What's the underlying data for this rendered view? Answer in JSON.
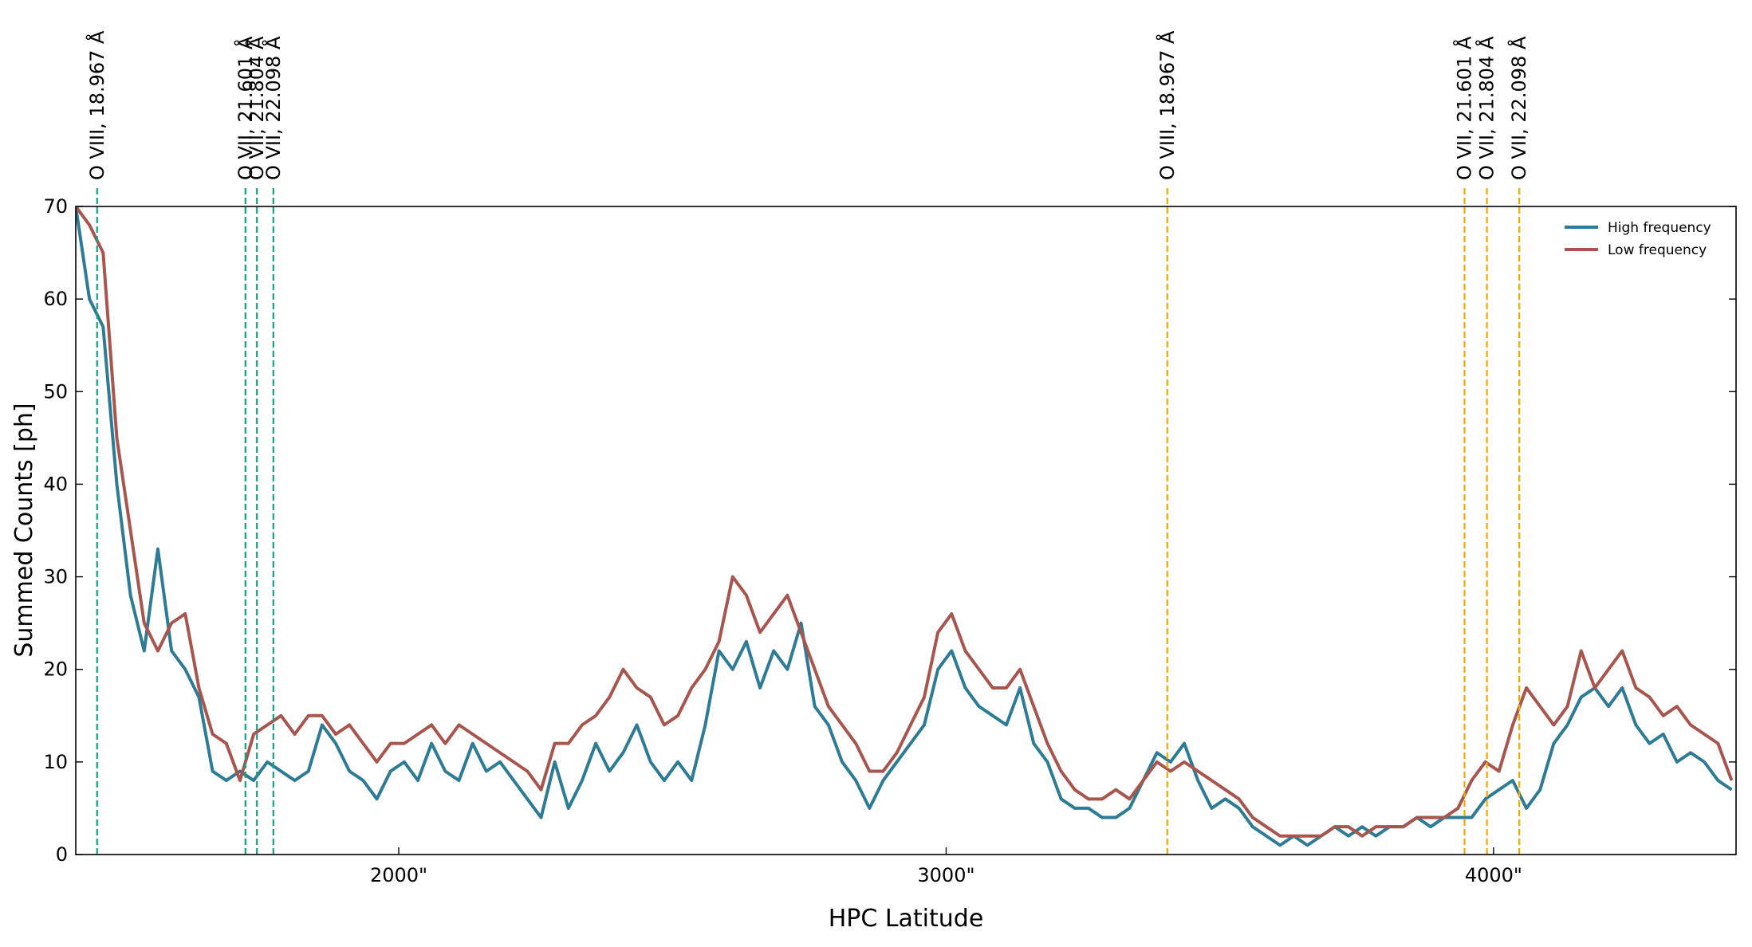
{
  "chart_data": {
    "type": "line",
    "xlabel": "HPC Latitude",
    "ylabel": "Summed Counts [ph]",
    "x": [
      1410,
      1435,
      1460,
      1485,
      1510,
      1535,
      1560,
      1585,
      1610,
      1635,
      1660,
      1685,
      1710,
      1735,
      1760,
      1785,
      1810,
      1835,
      1860,
      1885,
      1910,
      1935,
      1960,
      1985,
      2010,
      2035,
      2060,
      2085,
      2110,
      2135,
      2160,
      2185,
      2210,
      2235,
      2260,
      2285,
      2310,
      2335,
      2360,
      2385,
      2410,
      2435,
      2460,
      2485,
      2510,
      2535,
      2560,
      2585,
      2610,
      2635,
      2660,
      2685,
      2710,
      2735,
      2760,
      2785,
      2810,
      2835,
      2860,
      2885,
      2910,
      2935,
      2960,
      2985,
      3010,
      3035,
      3060,
      3085,
      3110,
      3135,
      3160,
      3185,
      3210,
      3235,
      3260,
      3285,
      3310,
      3335,
      3360,
      3385,
      3410,
      3435,
      3460,
      3485,
      3510,
      3535,
      3560,
      3585,
      3610,
      3635,
      3660,
      3685,
      3710,
      3735,
      3760,
      3785,
      3810,
      3835,
      3860,
      3885,
      3910,
      3935,
      3960,
      3985,
      4010,
      4035,
      4060,
      4085,
      4110,
      4135,
      4160,
      4185,
      4210,
      4235,
      4260,
      4285,
      4310,
      4335,
      4360,
      4385,
      4410,
      4435
    ],
    "series": [
      {
        "name": "High frequency",
        "color": "#2e7b96",
        "values": [
          70,
          60,
          57,
          40,
          28,
          22,
          33,
          22,
          20,
          17,
          9,
          8,
          9,
          8,
          10,
          9,
          8,
          9,
          14,
          12,
          9,
          8,
          6,
          9,
          10,
          8,
          12,
          9,
          8,
          12,
          9,
          10,
          8,
          6,
          4,
          10,
          5,
          8,
          12,
          9,
          11,
          14,
          10,
          8,
          10,
          8,
          14,
          22,
          20,
          23,
          18,
          22,
          20,
          25,
          16,
          14,
          10,
          8,
          5,
          8,
          10,
          12,
          14,
          20,
          22,
          18,
          16,
          15,
          14,
          18,
          12,
          10,
          6,
          5,
          5,
          4,
          4,
          5,
          8,
          11,
          10,
          12,
          8,
          5,
          6,
          5,
          3,
          2,
          1,
          2,
          1,
          2,
          3,
          2,
          3,
          2,
          3,
          3,
          4,
          3,
          4,
          4,
          4,
          6,
          7,
          8,
          5,
          7,
          12,
          14,
          17,
          18,
          16,
          18,
          14,
          12,
          13,
          10,
          11,
          10,
          8,
          7
        ]
      },
      {
        "name": "Low frequency",
        "color": "#a8554e",
        "values": [
          70,
          68,
          65,
          45,
          35,
          25,
          22,
          25,
          26,
          18,
          13,
          12,
          8,
          13,
          14,
          15,
          13,
          15,
          15,
          13,
          14,
          12,
          10,
          12,
          12,
          13,
          14,
          12,
          14,
          13,
          12,
          11,
          10,
          9,
          7,
          12,
          12,
          14,
          15,
          17,
          20,
          18,
          17,
          14,
          15,
          18,
          20,
          23,
          30,
          28,
          24,
          26,
          28,
          24,
          20,
          16,
          14,
          12,
          9,
          9,
          11,
          14,
          17,
          24,
          26,
          22,
          20,
          18,
          18,
          20,
          16,
          12,
          9,
          7,
          6,
          6,
          7,
          6,
          8,
          10,
          9,
          10,
          9,
          8,
          7,
          6,
          4,
          3,
          2,
          2,
          2,
          2,
          3,
          3,
          2,
          3,
          3,
          3,
          4,
          4,
          4,
          5,
          8,
          10,
          9,
          14,
          18,
          16,
          14,
          16,
          22,
          18,
          20,
          22,
          18,
          17,
          15,
          16,
          14,
          13,
          12,
          8
        ]
      }
    ],
    "annotations": [
      {
        "x": 1449,
        "label": "O VIII, 18.967 Å",
        "color": "#0fa383"
      },
      {
        "x": 1720,
        "label": "O VII, 21.601 Å",
        "color": "#0fa383"
      },
      {
        "x": 1741,
        "label": "O VII, 21.804 Å",
        "color": "#0fa383"
      },
      {
        "x": 1771,
        "label": "O VII, 22.098 Å",
        "color": "#0fa383"
      },
      {
        "x": 3404,
        "label": "O VIII, 18.967 Å",
        "color": "#f2a900"
      },
      {
        "x": 3947,
        "label": "O VII, 21.601 Å",
        "color": "#f2a900"
      },
      {
        "x": 3988,
        "label": "O VII, 21.804 Å",
        "color": "#f2a900"
      },
      {
        "x": 4047,
        "label": "O VII, 22.098 Å",
        "color": "#f2a900"
      }
    ],
    "xlim": [
      1410,
      4443
    ],
    "ylim": [
      0,
      70
    ],
    "xticks": [
      {
        "value": 2000,
        "label": "2000\""
      },
      {
        "value": 3000,
        "label": "3000\""
      },
      {
        "value": 4000,
        "label": "4000\""
      }
    ],
    "yticks": [
      0,
      10,
      20,
      30,
      40,
      50,
      60,
      70
    ],
    "legend": "upper right"
  }
}
